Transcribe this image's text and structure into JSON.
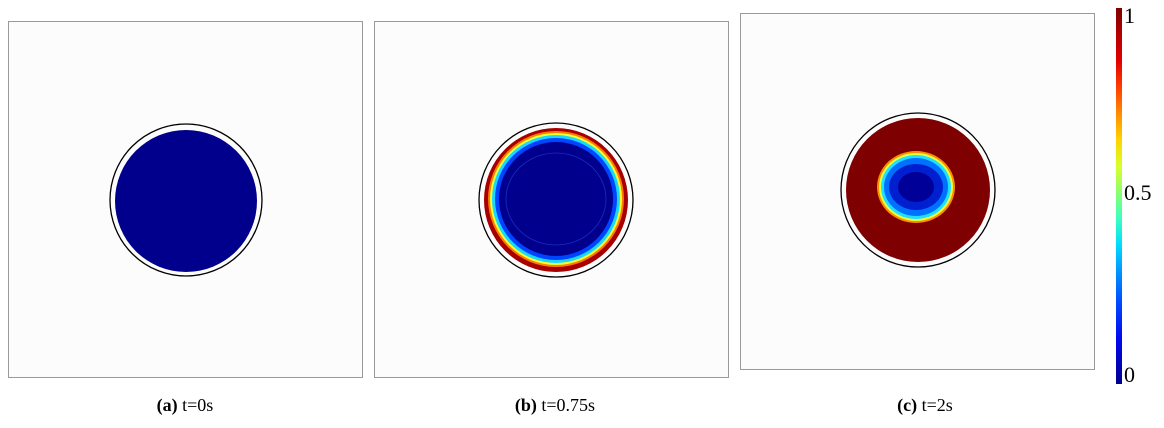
{
  "panels": [
    {
      "label": "(a)",
      "caption": "t=0s"
    },
    {
      "label": "(b)",
      "caption": "t=0.75s"
    },
    {
      "label": "(c)",
      "caption": "t=2s"
    }
  ],
  "colorbar": {
    "max_label": "1",
    "mid_label": "0.5",
    "min_label": "0",
    "colors": [
      "#7f0000",
      "#e10000",
      "#ff8c00",
      "#ffd200",
      "#8cff6e",
      "#00dcff",
      "#004cff",
      "#00008f"
    ]
  }
}
